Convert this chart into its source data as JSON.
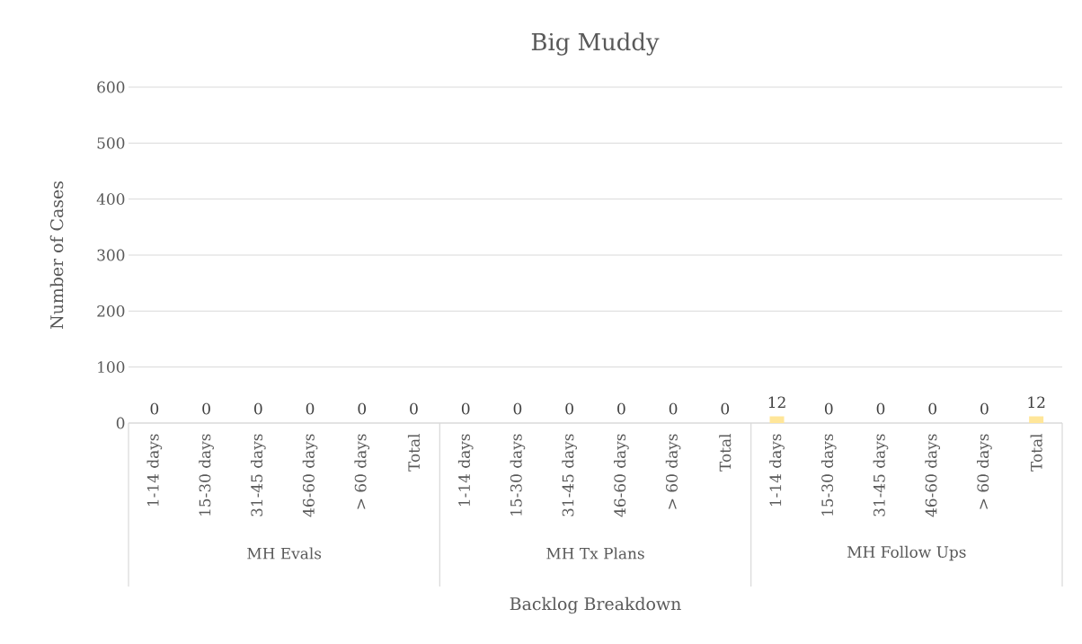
{
  "chart_data": {
    "type": "bar",
    "title": "Big Muddy",
    "xlabel": "Backlog Breakdown",
    "ylabel": "Number of Cases",
    "categories": [
      "1-14 days",
      "15-30 days",
      "31-45 days",
      "46-60 days",
      "> 60 days",
      "Total",
      "1-14 days",
      "15-30 days",
      "31-45 days",
      "46-60 days",
      "> 60 days",
      "Total",
      "1-14 days",
      "15-30 days",
      "31-45 days",
      "46-60 days",
      "> 60 days",
      "Total"
    ],
    "values": [
      0,
      0,
      0,
      0,
      0,
      0,
      0,
      0,
      0,
      0,
      0,
      0,
      12,
      0,
      0,
      0,
      0,
      12
    ],
    "color": "#ffe699",
    "ylim": [
      0,
      600
    ],
    "yticks": [
      0,
      100,
      200,
      300,
      400,
      500,
      600
    ],
    "grid": "y",
    "data_labels": true,
    "annotations": [
      "MH Evals",
      "MH Tx Plans",
      "MH Follow Ups"
    ]
  }
}
